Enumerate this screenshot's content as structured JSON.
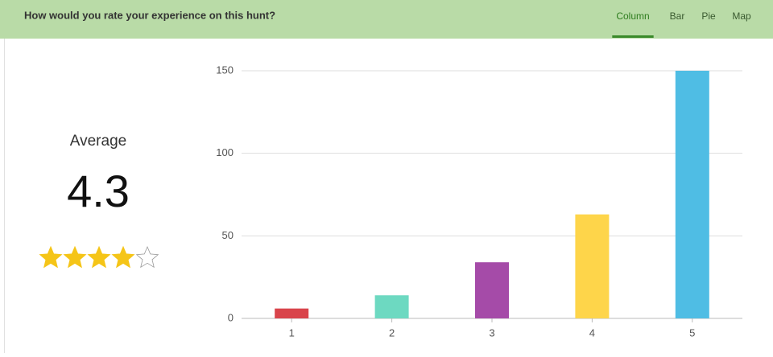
{
  "header": {
    "title": "How would you rate your experience on this hunt?",
    "tabs": [
      "Column",
      "Bar",
      "Pie",
      "Map"
    ],
    "active_tab": "Column"
  },
  "summary": {
    "label": "Average",
    "value": 4.3
  },
  "chart_data": {
    "type": "bar",
    "categories": [
      "1",
      "2",
      "3",
      "4",
      "5"
    ],
    "values": [
      6,
      14,
      34,
      63,
      150
    ],
    "colors": [
      "#d9444b",
      "#6dd9c1",
      "#a54ba8",
      "#fed54a",
      "#4fbde4"
    ],
    "ylim": [
      0,
      150
    ],
    "yticks": [
      0,
      50,
      100,
      150
    ],
    "grid": true
  }
}
